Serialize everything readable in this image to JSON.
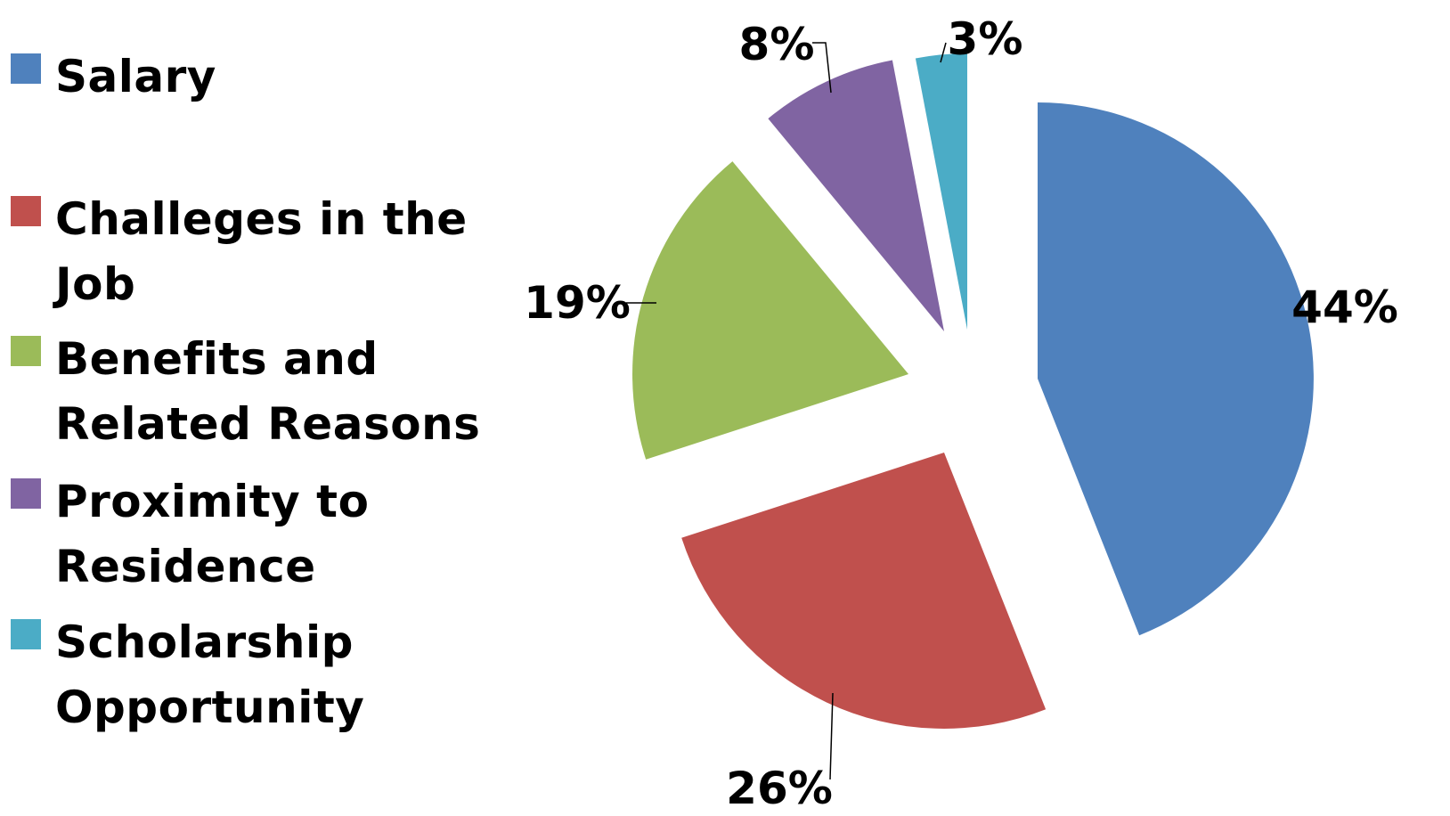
{
  "chart_data": {
    "type": "pie",
    "exploded": true,
    "legend_position": "left",
    "slices": [
      {
        "name": "Salary",
        "value": 44,
        "label": "44%",
        "color": "#4F81BD"
      },
      {
        "name": "Challeges in the Job",
        "value": 26,
        "label": "26%",
        "color": "#C0504D"
      },
      {
        "name": "Benefits and Related Reasons",
        "value": 19,
        "label": "19%",
        "color": "#9BBB59"
      },
      {
        "name": "Proximity to Residence",
        "value": 8,
        "label": "8%",
        "color": "#8064A2"
      },
      {
        "name": "Scholarship Opportunity",
        "value": 3,
        "label": "3%",
        "color": "#4BACC6"
      }
    ]
  }
}
